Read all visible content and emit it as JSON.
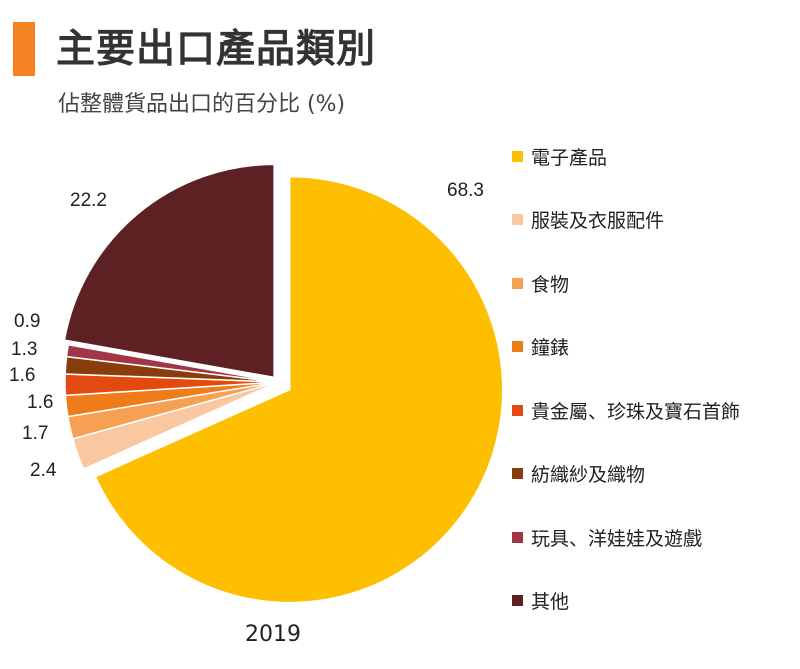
{
  "header": {
    "title": "主要出口產品類別",
    "subtitle": "佔整體貨品出口的百分比 (%)"
  },
  "chart_data": {
    "type": "pie",
    "title": "主要出口產品類別",
    "subtitle": "佔整體貨品出口的百分比 (%)",
    "year": "2019",
    "unit": "%",
    "legend_position": "right",
    "slices": [
      {
        "label": "電子產品",
        "value": 68.3,
        "value_label": "68.3",
        "color": "#fdbf00"
      },
      {
        "label": "服裝及衣服配件",
        "value": 2.4,
        "value_label": "2.4",
        "color": "#f9c8a0"
      },
      {
        "label": "食物",
        "value": 1.7,
        "value_label": "1.7",
        "color": "#f5a052"
      },
      {
        "label": "鐘錶",
        "value": 1.6,
        "value_label": "1.6",
        "color": "#ef7c1a"
      },
      {
        "label": "貴金屬、珍珠及寶石首飾",
        "value": 1.6,
        "value_label": "1.6",
        "color": "#e24a10"
      },
      {
        "label": "紡織紗及織物",
        "value": 1.3,
        "value_label": "1.3",
        "color": "#8a3d0c"
      },
      {
        "label": "玩具、洋娃娃及遊戲",
        "value": 0.9,
        "value_label": "0.9",
        "color": "#a23648"
      },
      {
        "label": "其他",
        "value": 22.2,
        "value_label": "22.2",
        "color": "#5e2123"
      }
    ]
  }
}
